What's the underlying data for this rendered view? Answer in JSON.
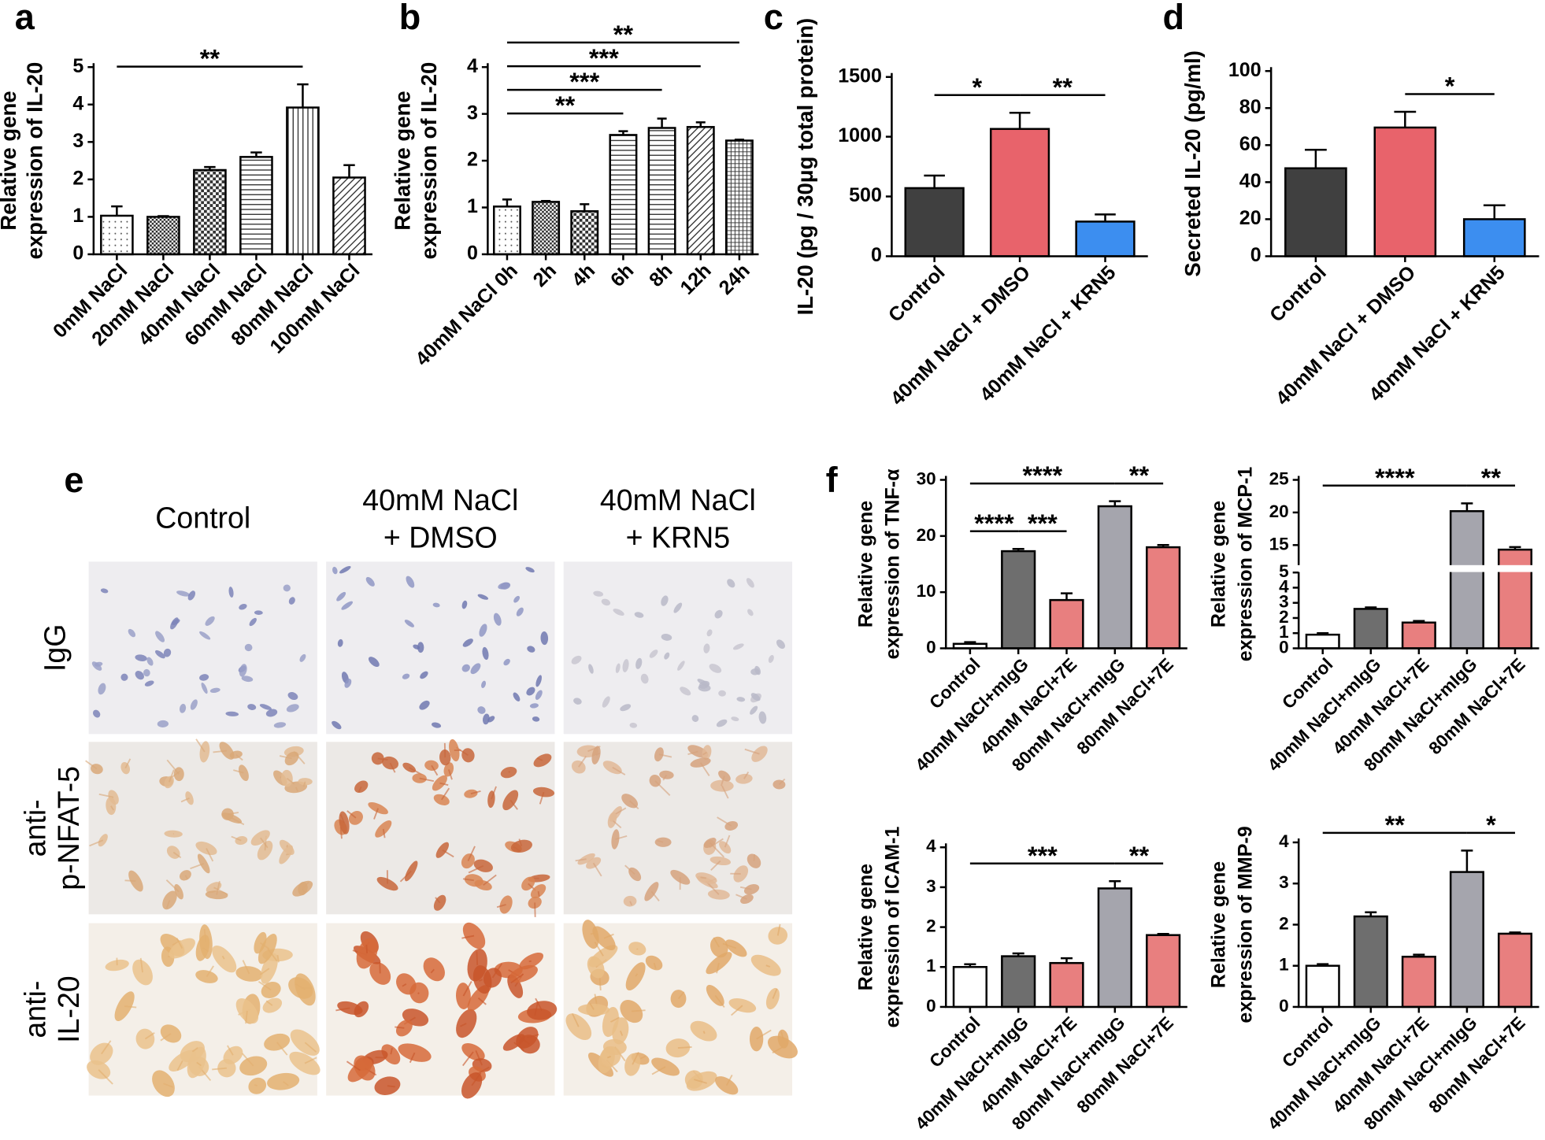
{
  "chart_data": [
    {
      "type": "bar",
      "panel": "a",
      "ylabel": [
        "Relative gene",
        "expression  of IL-20"
      ],
      "categories": [
        "0mM NaCl",
        "20mM NaCl",
        "40mM NaCl",
        "60mM NaCl",
        "80mM NaCl",
        "100mM NaCl"
      ],
      "values": [
        1.03,
        1.0,
        2.25,
        2.6,
        3.92,
        2.05
      ],
      "errors": [
        0.25,
        0.02,
        0.08,
        0.12,
        0.62,
        0.33
      ],
      "ylim": [
        0,
        5
      ],
      "yticks": [
        0,
        1,
        2,
        3,
        4,
        5
      ],
      "annotations": [
        {
          "label": "**",
          "from": "0mM NaCl",
          "to": "80mM NaCl"
        }
      ]
    },
    {
      "type": "bar",
      "panel": "b",
      "ylabel": [
        "Relative gene",
        "expression  of IL-20"
      ],
      "categories": [
        "40mM NaCl 0h",
        "2h",
        "4h",
        "6h",
        "8h",
        "12h",
        "24h"
      ],
      "values": [
        1.02,
        1.12,
        0.92,
        2.55,
        2.7,
        2.72,
        2.43
      ],
      "errors": [
        0.15,
        0.02,
        0.15,
        0.08,
        0.2,
        0.1,
        0.02
      ],
      "ylim": [
        0,
        4
      ],
      "yticks": [
        0,
        1,
        2,
        3,
        4
      ],
      "annotations": [
        {
          "label": "**",
          "from": "40mM NaCl 0h",
          "to": "6h"
        },
        {
          "label": "***",
          "from": "40mM NaCl 0h",
          "to": "8h"
        },
        {
          "label": "***",
          "from": "40mM NaCl 0h",
          "to": "12h"
        },
        {
          "label": "**",
          "from": "40mM NaCl 0h",
          "to": "24h"
        }
      ]
    },
    {
      "type": "bar",
      "panel": "c",
      "ylabel": [
        "IL-20 (pg / 30μg total protein)"
      ],
      "categories": [
        "Control",
        "40mM NaCl + DMSO",
        "40mM NaCl + KRN5"
      ],
      "values": [
        570,
        1065,
        290
      ],
      "errors": [
        105,
        135,
        60
      ],
      "colors": [
        "#404040",
        "#e8636b",
        "#3c8ef0"
      ],
      "ylim": [
        0,
        1500
      ],
      "yticks": [
        0,
        500,
        1000,
        1500
      ],
      "annotations": [
        {
          "label": "*",
          "from": "Control",
          "to": "40mM NaCl + DMSO"
        },
        {
          "label": "**",
          "from": "40mM NaCl + DMSO",
          "to": "40mM NaCl + KRN5"
        }
      ]
    },
    {
      "type": "bar",
      "panel": "d",
      "ylabel": [
        "Secreted IL-20 (pg/ml)"
      ],
      "categories": [
        "Control",
        "40mM NaCl + DMSO",
        "40mM NaCl + KRN5"
      ],
      "values": [
        47.5,
        69.5,
        20
      ],
      "errors": [
        10,
        8.5,
        7.5
      ],
      "colors": [
        "#404040",
        "#e8636b",
        "#3c8ef0"
      ],
      "ylim": [
        0,
        100
      ],
      "yticks": [
        0,
        20,
        40,
        60,
        80,
        100
      ],
      "annotations": [
        {
          "label": "*",
          "from": "40mM NaCl + DMSO",
          "to": "40mM NaCl + KRN5"
        }
      ]
    },
    {
      "type": "bar",
      "panel": "f",
      "ylabel": [
        "Relative gene",
        "expression of TNF-α"
      ],
      "categories": [
        "Control",
        "40mM NaCl+mIgG",
        "40mM NaCl+7E",
        "80mM NaCl+mIgG",
        "80mM NaCl+7E"
      ],
      "values": [
        0.8,
        17.3,
        8.6,
        25.3,
        18
      ],
      "errors": [
        0.3,
        0.4,
        1.2,
        0.9,
        0.4
      ],
      "colors": [
        "#ffffff",
        "#6e6e6e",
        "#e87f7f",
        "#a5a5ad",
        "#e87f7f"
      ],
      "ylim": [
        0,
        30
      ],
      "yticks": [
        0,
        10,
        20,
        30
      ],
      "annotations": [
        {
          "label": "****",
          "from": "Control",
          "to": "40mM NaCl+mIgG"
        },
        {
          "label": "***",
          "from": "40mM NaCl+mIgG",
          "to": "40mM NaCl+7E"
        },
        {
          "label": "****",
          "from": "Control",
          "to": "80mM NaCl+mIgG"
        },
        {
          "label": "**",
          "from": "80mM NaCl+mIgG",
          "to": "80mM NaCl+7E"
        }
      ]
    },
    {
      "type": "bar",
      "ylabel": [
        "Relative gene",
        "expression of MCP-1"
      ],
      "categories": [
        "Control",
        "40mM NaCl+mIgG",
        "40mM NaCl+7E",
        "80mM NaCl+mIgG",
        "80mM NaCl+7E"
      ],
      "values": [
        0.9,
        2.6,
        1.7,
        20.2,
        14.3
      ],
      "errors": [
        0.1,
        0.1,
        0.1,
        1.2,
        0.4
      ],
      "colors": [
        "#ffffff",
        "#6e6e6e",
        "#e87f7f",
        "#a5a5ad",
        "#e87f7f"
      ],
      "ylim": [
        0,
        25
      ],
      "ybreak": [
        5,
        12
      ],
      "yticks": [
        0,
        1,
        2,
        3,
        4,
        5,
        15,
        20,
        25
      ],
      "annotations": [
        {
          "label": "****",
          "from": "Control",
          "to": "80mM NaCl+mIgG"
        },
        {
          "label": "**",
          "from": "80mM NaCl+mIgG",
          "to": "80mM NaCl+7E"
        }
      ]
    },
    {
      "type": "bar",
      "ylabel": [
        "Relative gene",
        "expression of ICAM-1"
      ],
      "categories": [
        "Control",
        "40mM NaCl+mIgG",
        "40mM NaCl+7E",
        "80mM NaCl+mIgG",
        "80mM NaCl+7E"
      ],
      "values": [
        1.0,
        1.27,
        1.1,
        2.97,
        1.8
      ],
      "errors": [
        0.07,
        0.07,
        0.12,
        0.18,
        0.03
      ],
      "colors": [
        "#ffffff",
        "#6e6e6e",
        "#e87f7f",
        "#a5a5ad",
        "#e87f7f"
      ],
      "ylim": [
        0,
        4
      ],
      "yticks": [
        0,
        1,
        2,
        3,
        4
      ],
      "annotations": [
        {
          "label": "***",
          "from": "Control",
          "to": "80mM NaCl+mIgG"
        },
        {
          "label": "**",
          "from": "80mM NaCl+mIgG",
          "to": "80mM NaCl+7E"
        }
      ]
    },
    {
      "type": "bar",
      "ylabel": [
        "Relative gene",
        "expression of MMP-9"
      ],
      "categories": [
        "Control",
        "40mM NaCl+mIgG",
        "40mM NaCl+7E",
        "80mM NaCl+mIgG",
        "80mM NaCl+7E"
      ],
      "values": [
        1.0,
        2.2,
        1.22,
        3.28,
        1.78
      ],
      "errors": [
        0.04,
        0.1,
        0.05,
        0.52,
        0.03
      ],
      "colors": [
        "#ffffff",
        "#6e6e6e",
        "#e87f7f",
        "#a5a5ad",
        "#e87f7f"
      ],
      "ylim": [
        0,
        4
      ],
      "yticks": [
        0,
        1,
        2,
        3,
        4
      ],
      "annotations": [
        {
          "label": "**",
          "from": "Control",
          "to": "80mM NaCl+mIgG"
        },
        {
          "label": "*",
          "from": "80mM NaCl+mIgG",
          "to": "80mM NaCl+7E"
        }
      ]
    }
  ],
  "micrograph": {
    "panel": "e",
    "columns": [
      [
        "Control"
      ],
      [
        "40mM NaCl",
        "+ DMSO"
      ],
      [
        "40mM NaCl",
        "+ KRN5"
      ]
    ],
    "rows": [
      [
        "IgG"
      ],
      [
        "anti-",
        "p-NFAT-5"
      ],
      [
        "anti-",
        "IL-20"
      ]
    ]
  }
}
